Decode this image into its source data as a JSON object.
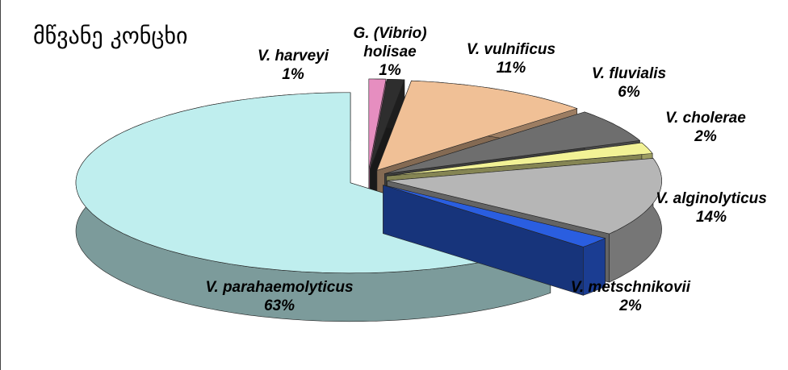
{
  "chart_data": {
    "type": "pie3d",
    "title": "მწვანე კონცხი",
    "categories": [
      "V. harveyi",
      "G. (Vibrio) holisae",
      "V. vulnificus",
      "V. fluvialis",
      "V. cholerae",
      "V. alginolyticus",
      "V. metschnikovii",
      "V. parahaemolyticus"
    ],
    "values": [
      1,
      1,
      11,
      6,
      2,
      14,
      2,
      63
    ],
    "value_labels": [
      "1%",
      "1%",
      "11%",
      "6%",
      "2%",
      "14%",
      "2%",
      "63%"
    ],
    "colors": [
      "#e68ec0",
      "#2e2e2e",
      "#f0c096",
      "#6e6e6e",
      "#f2f296",
      "#b6b6b6",
      "#2a5ee0",
      "#bfeeee"
    ]
  }
}
